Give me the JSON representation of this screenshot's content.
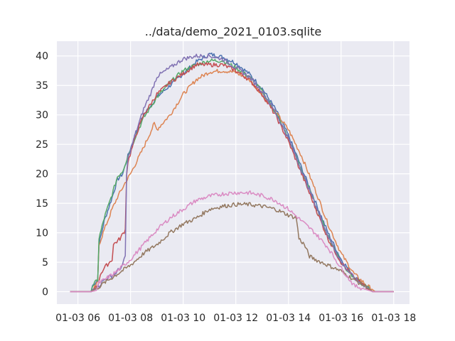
{
  "chart_data": {
    "type": "line",
    "title": "../data/demo_2021_0103.sqlite",
    "xlabel": "",
    "ylabel": "",
    "x_tick_labels": [
      "01-03 06",
      "01-03 08",
      "01-03 10",
      "01-03 12",
      "01-03 14",
      "01-03 16",
      "01-03 18"
    ],
    "x_ticks_hours": [
      6,
      8,
      10,
      12,
      14,
      16,
      18
    ],
    "xlim_hours": [
      5.2,
      18.6
    ],
    "y_ticks": [
      0,
      5,
      10,
      15,
      20,
      25,
      30,
      35,
      40
    ],
    "ylim": [
      -2.1,
      42.5
    ],
    "grid": true,
    "background": "#eaeaf2",
    "series": [
      {
        "color": "#4c72b0",
        "points": [
          [
            5.7,
            0
          ],
          [
            6.5,
            0
          ],
          [
            6.55,
            1
          ],
          [
            6.75,
            2
          ],
          [
            6.8,
            8
          ],
          [
            7.0,
            12
          ],
          [
            7.3,
            16
          ],
          [
            7.5,
            19
          ],
          [
            7.7,
            20
          ],
          [
            7.9,
            23
          ],
          [
            8.2,
            27
          ],
          [
            8.5,
            30
          ],
          [
            9.0,
            33
          ],
          [
            9.5,
            35
          ],
          [
            10.0,
            37
          ],
          [
            10.5,
            39
          ],
          [
            11.0,
            40.3
          ],
          [
            11.5,
            39.8
          ],
          [
            12.0,
            38.8
          ],
          [
            12.5,
            37
          ],
          [
            13.0,
            34.5
          ],
          [
            13.5,
            31
          ],
          [
            14.0,
            26.5
          ],
          [
            14.5,
            21
          ],
          [
            15.0,
            15.5
          ],
          [
            15.5,
            10
          ],
          [
            16.0,
            5.5
          ],
          [
            16.5,
            2.5
          ],
          [
            17.0,
            0.8
          ],
          [
            17.2,
            0
          ],
          [
            18.0,
            0
          ]
        ]
      },
      {
        "color": "#dd8452",
        "points": [
          [
            5.7,
            0
          ],
          [
            6.5,
            0
          ],
          [
            6.6,
            0.5
          ],
          [
            6.75,
            1.5
          ],
          [
            6.8,
            8
          ],
          [
            7.0,
            10.5
          ],
          [
            7.3,
            14
          ],
          [
            7.5,
            16
          ],
          [
            7.8,
            18.5
          ],
          [
            8.0,
            20
          ],
          [
            8.5,
            24.5
          ],
          [
            8.9,
            28.5
          ],
          [
            9.0,
            27.5
          ],
          [
            9.5,
            30
          ],
          [
            10.0,
            33.5
          ],
          [
            10.5,
            36
          ],
          [
            11.0,
            37.3
          ],
          [
            11.5,
            37.5
          ],
          [
            12.0,
            37.2
          ],
          [
            12.5,
            36
          ],
          [
            13.0,
            33.5
          ],
          [
            13.5,
            30.5
          ],
          [
            14.0,
            27.5
          ],
          [
            14.5,
            23
          ],
          [
            15.0,
            17.5
          ],
          [
            15.5,
            11.5
          ],
          [
            16.0,
            6.5
          ],
          [
            16.5,
            3
          ],
          [
            17.0,
            1
          ],
          [
            17.3,
            0
          ],
          [
            18.0,
            0
          ]
        ]
      },
      {
        "color": "#55a868",
        "points": [
          [
            5.7,
            0
          ],
          [
            6.5,
            0
          ],
          [
            6.55,
            1
          ],
          [
            6.75,
            2
          ],
          [
            6.8,
            9
          ],
          [
            7.0,
            12.5
          ],
          [
            7.3,
            16.5
          ],
          [
            7.5,
            19.5
          ],
          [
            7.7,
            20.5
          ],
          [
            7.9,
            23
          ],
          [
            8.2,
            26.5
          ],
          [
            8.5,
            29.5
          ],
          [
            9.0,
            33
          ],
          [
            9.5,
            35.5
          ],
          [
            10.0,
            37.5
          ],
          [
            10.5,
            38.5
          ],
          [
            11.0,
            39.2
          ],
          [
            11.5,
            39.2
          ],
          [
            12.0,
            38
          ],
          [
            12.5,
            36.5
          ],
          [
            13.0,
            34
          ],
          [
            13.5,
            30.5
          ],
          [
            14.0,
            26
          ],
          [
            14.5,
            20.5
          ],
          [
            15.0,
            15
          ],
          [
            15.5,
            9.5
          ],
          [
            16.0,
            5
          ],
          [
            16.5,
            2.3
          ],
          [
            17.0,
            0.7
          ],
          [
            17.2,
            0
          ],
          [
            18.0,
            0
          ]
        ]
      },
      {
        "color": "#c44e52",
        "points": [
          [
            5.7,
            0
          ],
          [
            6.5,
            0
          ],
          [
            6.6,
            0.5
          ],
          [
            6.8,
            1.5
          ],
          [
            6.85,
            3
          ],
          [
            7.0,
            4
          ],
          [
            7.3,
            5.5
          ],
          [
            7.35,
            8
          ],
          [
            7.6,
            9
          ],
          [
            7.8,
            10.5
          ],
          [
            7.85,
            20
          ],
          [
            7.9,
            22
          ],
          [
            8.2,
            26.5
          ],
          [
            8.5,
            30
          ],
          [
            9.0,
            33.5
          ],
          [
            9.5,
            35.5
          ],
          [
            10.0,
            37
          ],
          [
            10.5,
            38.5
          ],
          [
            11.0,
            38.5
          ],
          [
            11.5,
            38.5
          ],
          [
            12.0,
            37.5
          ],
          [
            12.5,
            36
          ],
          [
            13.0,
            33.5
          ],
          [
            13.5,
            30
          ],
          [
            14.0,
            25.5
          ],
          [
            14.5,
            20
          ],
          [
            15.0,
            14.5
          ],
          [
            15.5,
            9
          ],
          [
            16.0,
            5
          ],
          [
            16.5,
            2.3
          ],
          [
            17.0,
            0.7
          ],
          [
            17.2,
            0
          ],
          [
            18.0,
            0
          ]
        ]
      },
      {
        "color": "#8172b3",
        "points": [
          [
            5.7,
            0
          ],
          [
            6.5,
            0
          ],
          [
            6.6,
            0.5
          ],
          [
            6.8,
            1
          ],
          [
            7.0,
            2
          ],
          [
            7.4,
            3
          ],
          [
            7.7,
            4.5
          ],
          [
            7.8,
            6
          ],
          [
            7.85,
            20
          ],
          [
            7.9,
            22.5
          ],
          [
            8.2,
            27
          ],
          [
            8.5,
            31
          ],
          [
            8.8,
            34
          ],
          [
            9.0,
            36.5
          ],
          [
            9.5,
            38
          ],
          [
            10.0,
            39.5
          ],
          [
            10.5,
            40
          ],
          [
            11.0,
            40
          ],
          [
            11.5,
            39.5
          ],
          [
            12.0,
            38
          ],
          [
            12.5,
            36.5
          ],
          [
            13.0,
            34
          ],
          [
            13.5,
            30.5
          ],
          [
            14.0,
            26
          ],
          [
            14.5,
            20.5
          ],
          [
            15.0,
            15
          ],
          [
            15.5,
            9.5
          ],
          [
            16.0,
            5
          ],
          [
            16.5,
            2.3
          ],
          [
            17.0,
            0.7
          ],
          [
            17.2,
            0
          ],
          [
            18.0,
            0
          ]
        ]
      },
      {
        "color": "#937860",
        "points": [
          [
            5.7,
            0
          ],
          [
            6.5,
            0
          ],
          [
            6.6,
            0.3
          ],
          [
            6.8,
            0.8
          ],
          [
            7.0,
            1.5
          ],
          [
            7.5,
            3
          ],
          [
            8.0,
            4.5
          ],
          [
            8.5,
            6.5
          ],
          [
            9.0,
            8
          ],
          [
            9.5,
            10
          ],
          [
            10.0,
            11.5
          ],
          [
            10.5,
            12.5
          ],
          [
            11.0,
            14
          ],
          [
            11.5,
            14.5
          ],
          [
            12.0,
            14.8
          ],
          [
            12.5,
            14.8
          ],
          [
            13.0,
            14.5
          ],
          [
            13.5,
            14
          ],
          [
            14.0,
            13
          ],
          [
            14.3,
            12.5
          ],
          [
            14.4,
            9
          ],
          [
            14.6,
            8
          ],
          [
            14.8,
            6
          ],
          [
            15.0,
            5.5
          ],
          [
            15.5,
            4.5
          ],
          [
            16.0,
            3.5
          ],
          [
            16.5,
            2
          ],
          [
            17.0,
            0.7
          ],
          [
            17.2,
            0
          ],
          [
            18.0,
            0
          ]
        ]
      },
      {
        "color": "#da8bc3",
        "points": [
          [
            5.7,
            0
          ],
          [
            6.5,
            0
          ],
          [
            6.7,
            0.2
          ],
          [
            6.8,
            1.5
          ],
          [
            7.0,
            2
          ],
          [
            7.5,
            3.5
          ],
          [
            8.0,
            5.5
          ],
          [
            8.5,
            8
          ],
          [
            9.0,
            10.5
          ],
          [
            9.5,
            12.5
          ],
          [
            10.0,
            14
          ],
          [
            10.5,
            15.5
          ],
          [
            11.0,
            16.2
          ],
          [
            11.5,
            16.6
          ],
          [
            12.0,
            16.8
          ],
          [
            12.5,
            16.8
          ],
          [
            13.0,
            16.3
          ],
          [
            13.5,
            15.5
          ],
          [
            14.0,
            14
          ],
          [
            14.5,
            12
          ],
          [
            15.0,
            10
          ],
          [
            15.5,
            7.5
          ],
          [
            16.0,
            4
          ],
          [
            16.5,
            1
          ],
          [
            17.0,
            0.3
          ],
          [
            17.2,
            0
          ],
          [
            18.0,
            0
          ]
        ]
      }
    ]
  }
}
